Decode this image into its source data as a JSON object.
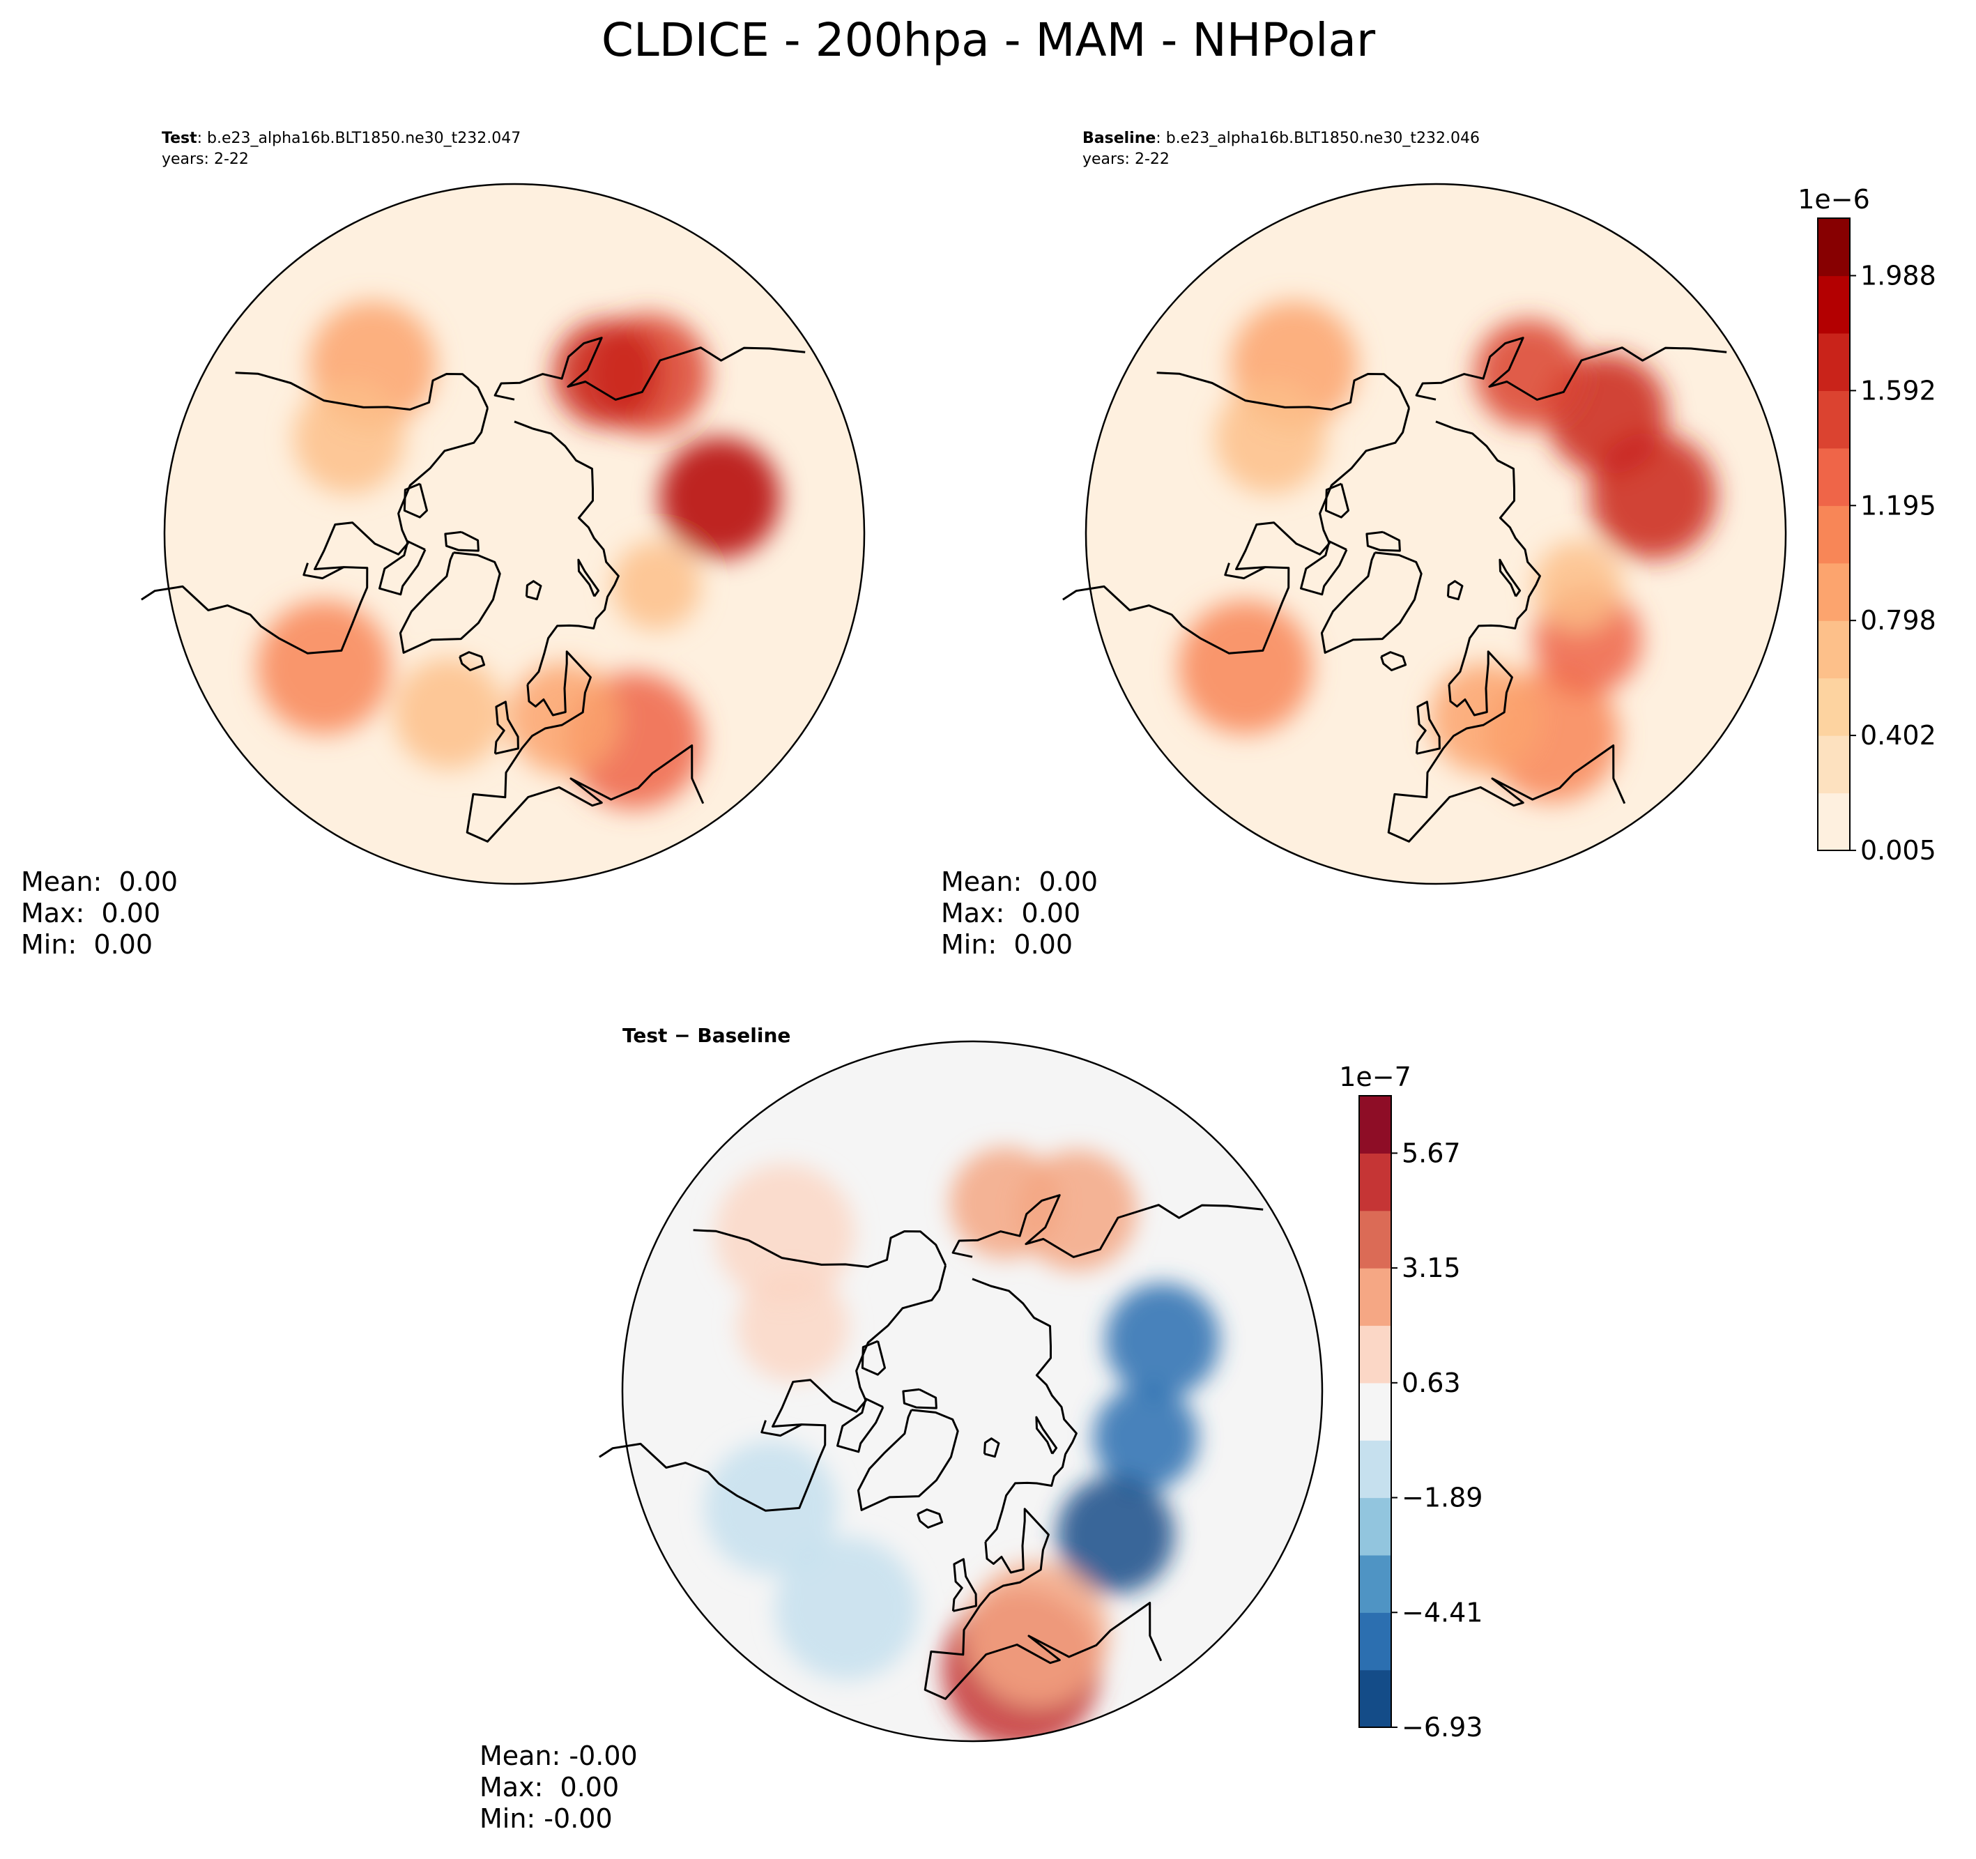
{
  "figure": {
    "title": "CLDICE - 200hpa - MAM - NHPolar"
  },
  "chart_data": [
    {
      "type": "heatmap",
      "projection": "north-polar-stereographic",
      "title_bold": "Test",
      "title_rest": ": b.e23_alpha16b.BLT1850.ne30_t232.047",
      "subtitle": "years: 2-22",
      "field": "CLDICE",
      "level": "200hpa",
      "season": "MAM",
      "stats": {
        "mean": "Mean:  0.00",
        "max": "Max:  0.00",
        "min": "Min:  0.00"
      },
      "pattern": [
        {
          "lon": 100,
          "lat": 52,
          "level": 9
        },
        {
          "lon": 140,
          "lat": 52,
          "level": 7
        },
        {
          "lon": 150,
          "lat": 56,
          "level": 8
        },
        {
          "lon": 30,
          "lat": 47,
          "level": 6
        },
        {
          "lon": 15,
          "lat": 55,
          "level": 4
        },
        {
          "lon": 70,
          "lat": 62,
          "level": 3
        },
        {
          "lon": -55,
          "lat": 48,
          "level": 5
        },
        {
          "lon": -140,
          "lat": 50,
          "level": 4
        },
        {
          "lon": -120,
          "lat": 55,
          "level": 3
        },
        {
          "lon": -20,
          "lat": 55,
          "level": 3
        }
      ]
    },
    {
      "type": "heatmap",
      "projection": "north-polar-stereographic",
      "title_bold": "Baseline",
      "title_rest": ": b.e23_alpha16b.BLT1850.ne30_t232.046",
      "subtitle": "years: 2-22",
      "field": "CLDICE",
      "level": "200hpa",
      "season": "MAM",
      "stats": {
        "mean": "Mean:  0.00",
        "max": "Max:  0.00",
        "min": "Min:  0.00"
      },
      "colorbar": {
        "colormap": "OrRd",
        "exponent": "1e−6",
        "tick_labels": [
          "0.005",
          "0.402",
          "0.798",
          "1.195",
          "1.592",
          "1.988"
        ],
        "tick_levels": [
          0,
          2,
          4,
          6,
          8,
          10
        ],
        "n_levels": 11
      },
      "pattern": [
        {
          "lon": 100,
          "lat": 50,
          "level": 8
        },
        {
          "lon": 125,
          "lat": 52,
          "level": 8
        },
        {
          "lon": 150,
          "lat": 56,
          "level": 7
        },
        {
          "lon": 30,
          "lat": 48,
          "level": 5
        },
        {
          "lon": 55,
          "lat": 56,
          "level": 6
        },
        {
          "lon": 15,
          "lat": 55,
          "level": 4
        },
        {
          "lon": 70,
          "lat": 62,
          "level": 3
        },
        {
          "lon": -55,
          "lat": 48,
          "level": 5
        },
        {
          "lon": -140,
          "lat": 50,
          "level": 4
        },
        {
          "lon": -120,
          "lat": 55,
          "level": 3
        }
      ]
    },
    {
      "type": "heatmap",
      "projection": "north-polar-stereographic",
      "title": "Test − Baseline",
      "stats": {
        "mean": "Mean: -0.00",
        "max": "Max:  0.00",
        "min": "Min: -0.00"
      },
      "colorbar": {
        "colormap": "RdBu_r",
        "exponent": "1e−7",
        "tick_labels": [
          "−6.93",
          "−4.41",
          "−1.89",
          "0.63",
          "3.15",
          "5.67"
        ],
        "tick_levels": [
          0,
          2,
          4,
          6,
          8,
          10
        ],
        "n_levels": 11
      },
      "pattern": [
        {
          "lon": 105,
          "lat": 54,
          "level": 1
        },
        {
          "lon": 75,
          "lat": 57,
          "level": 1
        },
        {
          "lon": 45,
          "lat": 53,
          "level": 0
        },
        {
          "lon": 10,
          "lat": 40,
          "level": 9
        },
        {
          "lon": 15,
          "lat": 45,
          "level": 7
        },
        {
          "lon": 150,
          "lat": 52,
          "level": 7
        },
        {
          "lon": 170,
          "lat": 55,
          "level": 7
        },
        {
          "lon": -110,
          "lat": 55,
          "level": 6
        },
        {
          "lon": -130,
          "lat": 46,
          "level": 6
        },
        {
          "lon": -60,
          "lat": 48,
          "level": 4
        },
        {
          "lon": -30,
          "lat": 45,
          "level": 4
        }
      ]
    }
  ]
}
